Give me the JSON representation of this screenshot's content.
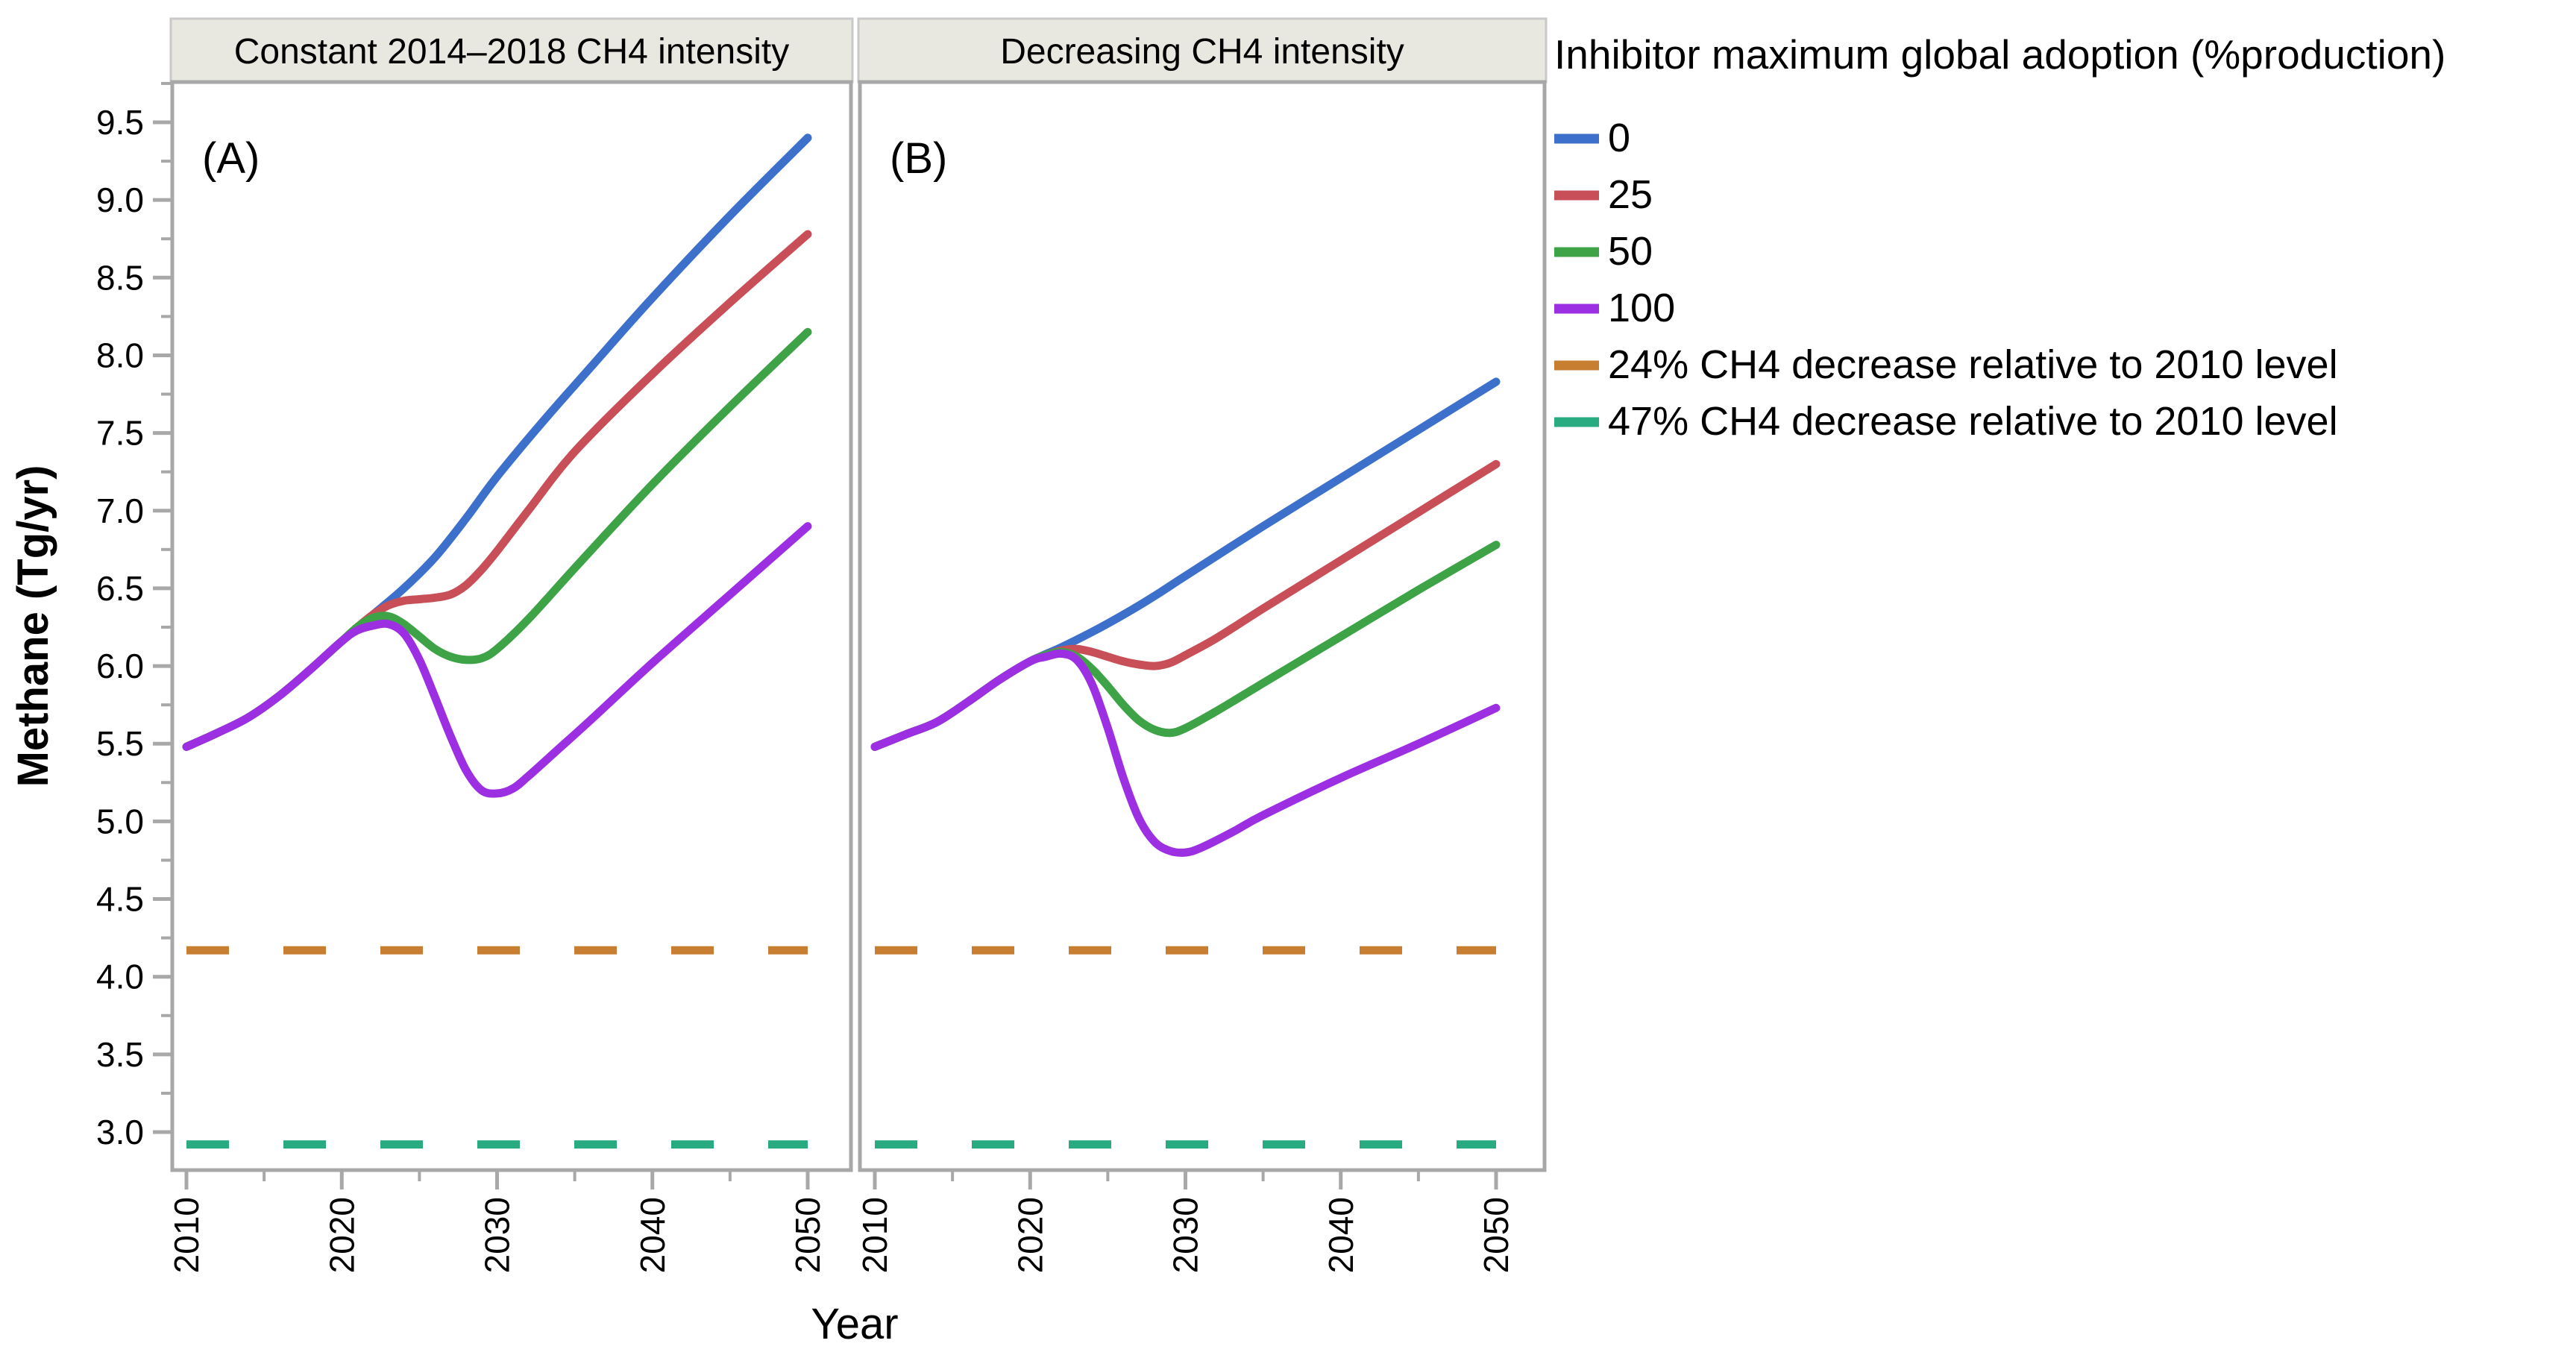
{
  "figure": {
    "y_axis": {
      "title": "Methane (Tg/yr)",
      "major_tick_labels": [
        "9.5",
        "9.0",
        "8.5",
        "8.0",
        "7.5",
        "7.0",
        "6.5",
        "6.0",
        "5.5",
        "5.0",
        "4.5",
        "4.0",
        "3.5",
        "3.0"
      ]
    },
    "x_axis": {
      "title": "Year",
      "major_tick_labels": [
        "2010",
        "2020",
        "2030",
        "2040",
        "2050"
      ]
    },
    "facet_headers": [
      "Constant 2014–2018 CH4 intensity",
      "Decreasing CH4 intensity"
    ],
    "panel_tags": [
      "(A)",
      "(B)"
    ],
    "legend": {
      "title": "Inhibitor maximum global adoption (%production)",
      "items": [
        {
          "label": "0",
          "color_key": "adoption_0",
          "dashed": false
        },
        {
          "label": "25",
          "color_key": "adoption_25",
          "dashed": false
        },
        {
          "label": "50",
          "color_key": "adoption_50",
          "dashed": false
        },
        {
          "label": "100",
          "color_key": "adoption_100",
          "dashed": false
        },
        {
          "label": "24% CH4 decrease relative to 2010 level",
          "color_key": "ref_24",
          "dashed": true
        },
        {
          "label": "47% CH4 decrease relative to 2010 level",
          "color_key": "ref_47",
          "dashed": true
        }
      ]
    },
    "colors": {
      "adoption_0": "#3d70ca",
      "adoption_25": "#c84f58",
      "adoption_50": "#3da346",
      "adoption_100": "#9d2fe2",
      "ref_24": "#c87e30",
      "ref_47": "#28ab81",
      "axis_gray": "#a8a8a8",
      "header_bg": "#e9e8e0",
      "header_border": "#c9c9c9"
    }
  },
  "chart_data": {
    "type": "line",
    "xlabel": "Year",
    "ylabel": "Methane (Tg/yr)",
    "xlim": [
      2009,
      2053
    ],
    "ylim": [
      2.76,
      9.76
    ],
    "x_major_ticks": [
      2010,
      2020,
      2030,
      2040,
      2050
    ],
    "x_minor_ticks": [
      2015,
      2025,
      2035,
      2045
    ],
    "y_major_ticks": [
      3.0,
      3.5,
      4.0,
      4.5,
      5.0,
      5.5,
      6.0,
      6.5,
      7.0,
      7.5,
      8.0,
      8.5,
      9.0,
      9.5
    ],
    "y_minor_ticks": [
      3.25,
      3.75,
      4.25,
      4.75,
      5.25,
      5.75,
      6.25,
      6.75,
      7.25,
      7.75,
      8.25,
      8.75,
      9.25,
      9.75
    ],
    "grid": false,
    "legend_position": "right",
    "facets": [
      {
        "id": "A",
        "header": "Constant 2014–2018 CH4 intensity",
        "series": [
          {
            "name": "0",
            "color_key": "adoption_0",
            "points": [
              [
                2010,
                5.48
              ],
              [
                2012,
                5.57
              ],
              [
                2014,
                5.67
              ],
              [
                2016,
                5.81
              ],
              [
                2018,
                5.98
              ],
              [
                2020,
                6.16
              ],
              [
                2022,
                6.33
              ],
              [
                2024,
                6.5
              ],
              [
                2026,
                6.7
              ],
              [
                2028,
                6.95
              ],
              [
                2030,
                7.22
              ],
              [
                2033,
                7.58
              ],
              [
                2036,
                7.92
              ],
              [
                2040,
                8.37
              ],
              [
                2045,
                8.9
              ],
              [
                2050,
                9.4
              ]
            ]
          },
          {
            "name": "25",
            "color_key": "adoption_25",
            "points": [
              [
                2010,
                5.48
              ],
              [
                2012,
                5.57
              ],
              [
                2014,
                5.67
              ],
              [
                2016,
                5.81
              ],
              [
                2018,
                5.98
              ],
              [
                2020,
                6.16
              ],
              [
                2021,
                6.25
              ],
              [
                2022,
                6.33
              ],
              [
                2023,
                6.39
              ],
              [
                2024,
                6.42
              ],
              [
                2025,
                6.43
              ],
              [
                2026,
                6.44
              ],
              [
                2027,
                6.46
              ],
              [
                2028,
                6.52
              ],
              [
                2029,
                6.62
              ],
              [
                2030,
                6.74
              ],
              [
                2032,
                7.0
              ],
              [
                2035,
                7.38
              ],
              [
                2040,
                7.88
              ],
              [
                2045,
                8.34
              ],
              [
                2050,
                8.78
              ]
            ]
          },
          {
            "name": "50",
            "color_key": "adoption_50",
            "points": [
              [
                2010,
                5.48
              ],
              [
                2012,
                5.57
              ],
              [
                2014,
                5.67
              ],
              [
                2016,
                5.81
              ],
              [
                2018,
                5.98
              ],
              [
                2020,
                6.16
              ],
              [
                2021,
                6.25
              ],
              [
                2022,
                6.31
              ],
              [
                2023,
                6.32
              ],
              [
                2024,
                6.27
              ],
              [
                2025,
                6.19
              ],
              [
                2026,
                6.11
              ],
              [
                2027,
                6.06
              ],
              [
                2028,
                6.04
              ],
              [
                2029,
                6.05
              ],
              [
                2030,
                6.11
              ],
              [
                2032,
                6.3
              ],
              [
                2035,
                6.63
              ],
              [
                2040,
                7.17
              ],
              [
                2045,
                7.67
              ],
              [
                2050,
                8.15
              ]
            ]
          },
          {
            "name": "100",
            "color_key": "adoption_100",
            "points": [
              [
                2010,
                5.48
              ],
              [
                2012,
                5.57
              ],
              [
                2014,
                5.67
              ],
              [
                2016,
                5.81
              ],
              [
                2018,
                5.98
              ],
              [
                2020,
                6.16
              ],
              [
                2021,
                6.23
              ],
              [
                2022,
                6.26
              ],
              [
                2023,
                6.27
              ],
              [
                2024,
                6.21
              ],
              [
                2025,
                6.04
              ],
              [
                2026,
                5.8
              ],
              [
                2027,
                5.55
              ],
              [
                2028,
                5.33
              ],
              [
                2029,
                5.2
              ],
              [
                2030,
                5.18
              ],
              [
                2031,
                5.21
              ],
              [
                2032,
                5.29
              ],
              [
                2034,
                5.47
              ],
              [
                2036,
                5.65
              ],
              [
                2040,
                6.02
              ],
              [
                2045,
                6.46
              ],
              [
                2050,
                6.9
              ]
            ]
          }
        ]
      },
      {
        "id": "B",
        "header": "Decreasing CH4 intensity",
        "series": [
          {
            "name": "0",
            "color_key": "adoption_0",
            "points": [
              [
                2010,
                5.48
              ],
              [
                2012,
                5.56
              ],
              [
                2014,
                5.64
              ],
              [
                2016,
                5.77
              ],
              [
                2018,
                5.91
              ],
              [
                2020,
                6.03
              ],
              [
                2022,
                6.12
              ],
              [
                2024,
                6.22
              ],
              [
                2026,
                6.33
              ],
              [
                2028,
                6.45
              ],
              [
                2030,
                6.58
              ],
              [
                2035,
                6.9
              ],
              [
                2040,
                7.21
              ],
              [
                2045,
                7.52
              ],
              [
                2050,
                7.83
              ]
            ]
          },
          {
            "name": "25",
            "color_key": "adoption_25",
            "points": [
              [
                2010,
                5.48
              ],
              [
                2012,
                5.56
              ],
              [
                2014,
                5.64
              ],
              [
                2016,
                5.77
              ],
              [
                2018,
                5.91
              ],
              [
                2020,
                6.03
              ],
              [
                2021,
                6.07
              ],
              [
                2022,
                6.1
              ],
              [
                2023,
                6.11
              ],
              [
                2024,
                6.09
              ],
              [
                2025,
                6.06
              ],
              [
                2026,
                6.03
              ],
              [
                2027,
                6.01
              ],
              [
                2028,
                6.0
              ],
              [
                2029,
                6.02
              ],
              [
                2030,
                6.07
              ],
              [
                2032,
                6.18
              ],
              [
                2035,
                6.37
              ],
              [
                2040,
                6.68
              ],
              [
                2045,
                6.99
              ],
              [
                2050,
                7.3
              ]
            ]
          },
          {
            "name": "50",
            "color_key": "adoption_50",
            "points": [
              [
                2010,
                5.48
              ],
              [
                2012,
                5.56
              ],
              [
                2014,
                5.64
              ],
              [
                2016,
                5.77
              ],
              [
                2018,
                5.91
              ],
              [
                2020,
                6.03
              ],
              [
                2021,
                6.07
              ],
              [
                2022,
                6.09
              ],
              [
                2023,
                6.06
              ],
              [
                2024,
                5.98
              ],
              [
                2025,
                5.87
              ],
              [
                2026,
                5.75
              ],
              [
                2027,
                5.65
              ],
              [
                2028,
                5.59
              ],
              [
                2029,
                5.57
              ],
              [
                2030,
                5.6
              ],
              [
                2032,
                5.71
              ],
              [
                2035,
                5.89
              ],
              [
                2040,
                6.19
              ],
              [
                2045,
                6.49
              ],
              [
                2050,
                6.78
              ]
            ]
          },
          {
            "name": "100",
            "color_key": "adoption_100",
            "points": [
              [
                2010,
                5.48
              ],
              [
                2012,
                5.56
              ],
              [
                2014,
                5.64
              ],
              [
                2016,
                5.77
              ],
              [
                2018,
                5.91
              ],
              [
                2020,
                6.03
              ],
              [
                2021,
                6.06
              ],
              [
                2022,
                6.08
              ],
              [
                2023,
                6.04
              ],
              [
                2024,
                5.88
              ],
              [
                2025,
                5.6
              ],
              [
                2026,
                5.28
              ],
              [
                2027,
                5.02
              ],
              [
                2028,
                4.87
              ],
              [
                2029,
                4.81
              ],
              [
                2030,
                4.8
              ],
              [
                2031,
                4.83
              ],
              [
                2033,
                4.93
              ],
              [
                2035,
                5.04
              ],
              [
                2040,
                5.28
              ],
              [
                2045,
                5.5
              ],
              [
                2050,
                5.73
              ]
            ]
          }
        ]
      }
    ],
    "reference_lines": [
      {
        "name": "24% CH4 decrease relative to 2010 level",
        "value": 4.17,
        "color_key": "ref_24",
        "dashed": true
      },
      {
        "name": "47% CH4 decrease relative to 2010 level",
        "value": 2.92,
        "color_key": "ref_47",
        "dashed": true
      }
    ]
  }
}
